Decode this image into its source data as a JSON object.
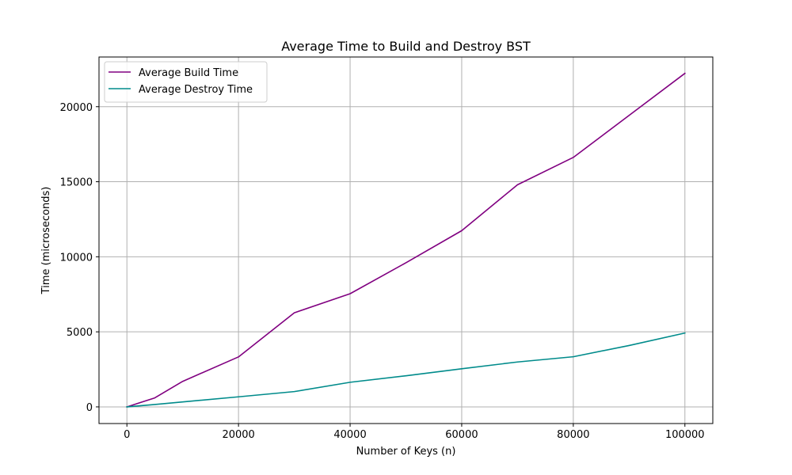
{
  "chart_data": {
    "type": "line",
    "title": "Average Time to Build and Destroy BST",
    "xlabel": "Number of Keys (n)",
    "ylabel": "Time (microseconds)",
    "xlim": [
      -5000,
      105000
    ],
    "ylim": [
      -1110,
      23310
    ],
    "xticks": [
      0,
      20000,
      40000,
      60000,
      80000,
      100000
    ],
    "yticks": [
      0,
      5000,
      10000,
      15000,
      20000
    ],
    "grid": true,
    "legend_position": "top-left",
    "x": [
      0,
      5000,
      10000,
      20000,
      30000,
      40000,
      50000,
      60000,
      70000,
      80000,
      90000,
      100000
    ],
    "series": [
      {
        "name": "Average Build Time",
        "color": "#800080",
        "values": [
          0,
          600,
          1700,
          3330,
          6270,
          7540,
          9600,
          11740,
          14800,
          16620,
          19420,
          22220
        ]
      },
      {
        "name": "Average Destroy Time",
        "color": "#008B8B",
        "values": [
          0,
          160,
          330,
          670,
          1020,
          1640,
          2070,
          2540,
          2990,
          3340,
          4090,
          4920
        ]
      }
    ]
  }
}
